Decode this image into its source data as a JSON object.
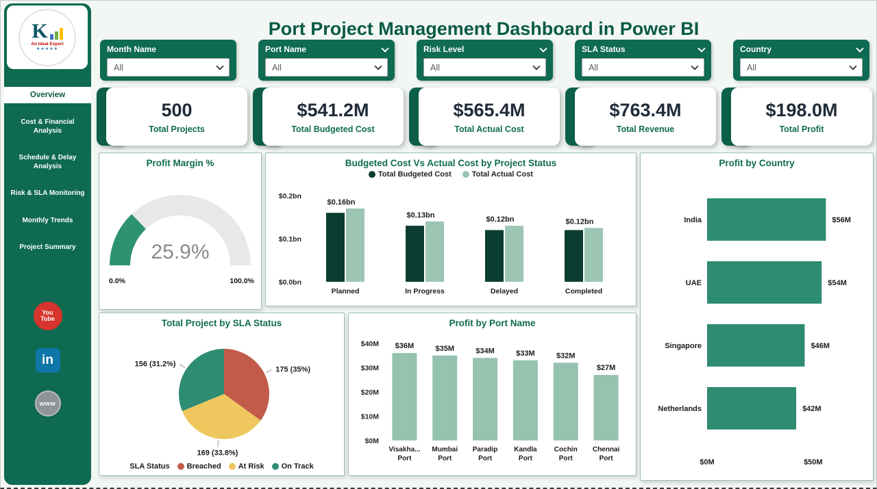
{
  "header": {
    "title": "Port Project Management Dashboard in Power BI"
  },
  "colors": {
    "sidebar_green": "#0E6A50",
    "primary_green": "#0E6B50",
    "title_green": "#0A5A46",
    "kpi_accent": "#0C5F49",
    "kpi_text": "#1F2B38",
    "gauge_fill": "#2E9271",
    "gauge_track": "#E8E8E8",
    "budgeted_dark": "#0B3D31",
    "actual_sage": "#9CC5B4",
    "country_bar": "#2E8C72",
    "port_bar": "#96C2B0",
    "pie_breached": "#C25B4A",
    "pie_at_risk": "#F0C75E",
    "pie_on_track": "#2E8C72"
  },
  "sidebar": {
    "logo": {
      "brand_letter": "K",
      "caption": "An Ideal Expert",
      "stars": "★★★★★"
    },
    "items": [
      {
        "label": "Overview",
        "active": true
      },
      {
        "label": "Cost & Financial Analysis",
        "active": false
      },
      {
        "label": "Schedule & Delay Analysis",
        "active": false
      },
      {
        "label": "Risk & SLA Monitoring",
        "active": false
      },
      {
        "label": "Monthly Trends",
        "active": false
      },
      {
        "label": "Project Summary",
        "active": false
      }
    ],
    "social": [
      {
        "name": "youtube",
        "label": "You Tube"
      },
      {
        "name": "linkedin",
        "label": "in"
      },
      {
        "name": "website",
        "label": "www"
      }
    ]
  },
  "slicers": [
    {
      "label": "Month Name",
      "value": "All"
    },
    {
      "label": "Port Name",
      "value": "All"
    },
    {
      "label": "Risk Level",
      "value": "All"
    },
    {
      "label": "SLA Status",
      "value": "All"
    },
    {
      "label": "Country",
      "value": "All"
    }
  ],
  "kpis": [
    {
      "value": "500",
      "label": "Total Projects"
    },
    {
      "value": "$541.2M",
      "label": "Total Budgeted Cost"
    },
    {
      "value": "$565.4M",
      "label": "Total Actual Cost"
    },
    {
      "value": "$763.4M",
      "label": "Total Revenue"
    },
    {
      "value": "$198.0M",
      "label": "Total Profit"
    }
  ],
  "chart_data": [
    {
      "id": "profit-margin-gauge",
      "type": "gauge",
      "title": "Profit Margin %",
      "value": 25.9,
      "value_label": "25.9%",
      "min": 0,
      "max": 100,
      "min_label": "0.0%",
      "max_label": "100.0%"
    },
    {
      "id": "budget-vs-actual-by-status",
      "type": "bar",
      "title": "Budgeted Cost Vs Actual Cost by Project Status",
      "categories": [
        "Planned",
        "In Progress",
        "Delayed",
        "Completed"
      ],
      "series": [
        {
          "name": "Total Budgeted Cost",
          "color": "#0B3D31",
          "values": [
            0.16,
            0.13,
            0.12,
            0.12
          ],
          "labels": [
            "$0.16bn",
            "$0.13bn",
            "$0.12bn",
            "$0.12bn"
          ]
        },
        {
          "name": "Total Actual Cost",
          "color": "#9CC5B4",
          "values": [
            0.17,
            0.14,
            0.13,
            0.125
          ]
        }
      ],
      "ylim": [
        0,
        0.2
      ],
      "y_ticks": [
        "$0.0bn",
        "$0.1bn",
        "$0.2bn"
      ],
      "y_tick_values": [
        0,
        0.1,
        0.2
      ],
      "legend_position": "top",
      "grid": false
    },
    {
      "id": "profit-by-country",
      "type": "bar-horizontal",
      "title": "Profit by Country",
      "categories": [
        "India",
        "UAE",
        "Singapore",
        "Netherlands"
      ],
      "values": [
        56,
        54,
        46,
        42
      ],
      "labels": [
        "$56M",
        "$54M",
        "$46M",
        "$42M"
      ],
      "xlim": [
        0,
        62
      ],
      "x_ticks": [
        "$0M",
        "$50M"
      ],
      "x_tick_values": [
        0,
        50
      ],
      "bar_color": "#2E8C72"
    },
    {
      "id": "projects-by-sla-status",
      "type": "pie",
      "title": "Total Project by SLA Status",
      "legend_title": "SLA Status",
      "total": 500,
      "slices": [
        {
          "name": "Breached",
          "value": 175,
          "label": "175 (35%)",
          "color": "#C25B4A"
        },
        {
          "name": "At Risk",
          "value": 169,
          "label": "169 (33.8%)",
          "color": "#F0C75E"
        },
        {
          "name": "On Track",
          "value": 156,
          "label": "156 (31.2%)",
          "color": "#2E8C72"
        }
      ]
    },
    {
      "id": "profit-by-port",
      "type": "bar",
      "title": "Profit by Port Name",
      "categories": [
        "Visakha...\nPort",
        "Mumbai\nPort",
        "Paradip\nPort",
        "Kandla\nPort",
        "Cochin\nPort",
        "Chennai\nPort"
      ],
      "values": [
        36,
        35,
        34,
        33,
        32,
        27
      ],
      "labels": [
        "$36M",
        "$35M",
        "$34M",
        "$33M",
        "$32M",
        "$27M"
      ],
      "ylim": [
        0,
        40
      ],
      "y_ticks": [
        "$0M",
        "$10M",
        "$20M",
        "$30M",
        "$40M"
      ],
      "y_tick_values": [
        0,
        10,
        20,
        30,
        40
      ],
      "bar_color": "#96C2B0"
    }
  ]
}
